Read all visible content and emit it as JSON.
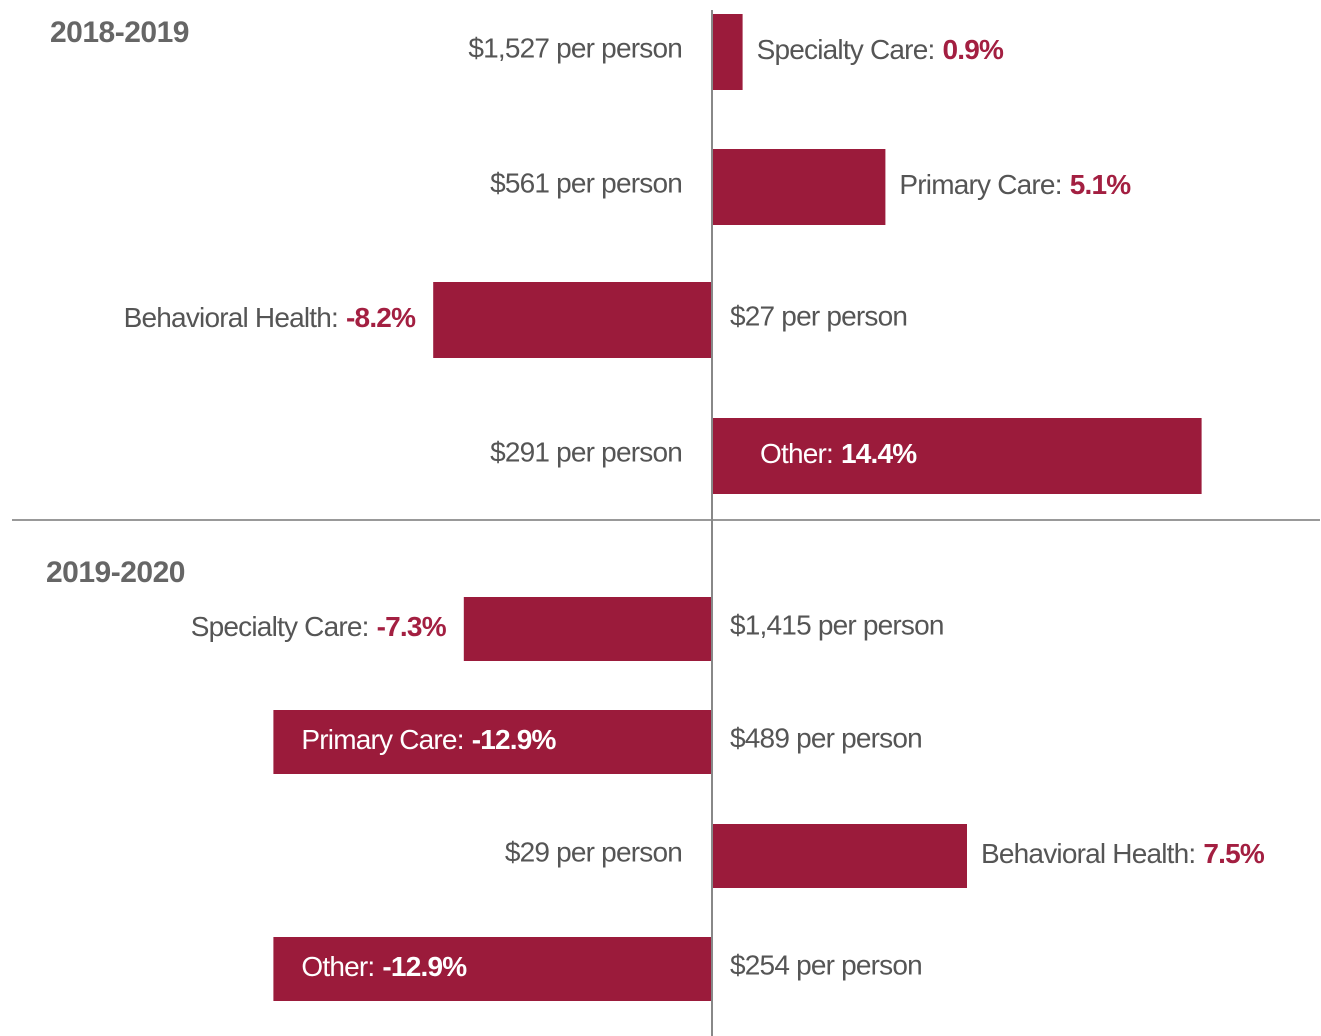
{
  "chart_data": [
    {
      "type": "diverging-bar",
      "title": "2018-2019",
      "color": "#9b1b3b",
      "label_color": "#a31f41",
      "categories": [
        "Specialty Care:",
        "Primary Care:",
        "Behavioral Health:",
        "Other:"
      ],
      "values": [
        0.9,
        5.1,
        -8.2,
        14.4
      ],
      "value_labels": [
        "0.9%",
        "5.1%",
        "-8.2%",
        "14.4%"
      ],
      "annotations": [
        "$1,527 per person",
        "$561 per person",
        "$27 per person",
        "$291 per person"
      ]
    },
    {
      "type": "diverging-bar",
      "title": "2019-2020",
      "color": "#9b1b3b",
      "label_color": "#a31f41",
      "categories": [
        "Specialty Care:",
        "Primary Care:",
        "Behavioral Health:",
        "Other:"
      ],
      "values": [
        -7.3,
        -12.9,
        7.5,
        -12.9
      ],
      "value_labels": [
        "-7.3%",
        "-12.9%",
        "7.5%",
        "-12.9%"
      ],
      "annotations": [
        "$1,415 per person",
        "$489 per person",
        "$29 per person",
        "$254 per person"
      ]
    }
  ]
}
